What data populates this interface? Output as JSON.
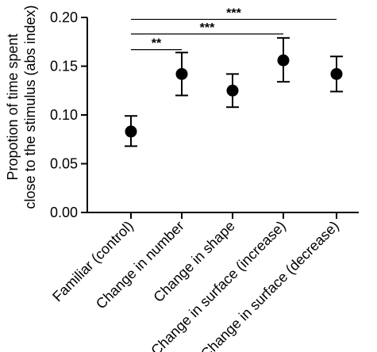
{
  "chart_data": {
    "type": "scatter",
    "title": "",
    "xlabel": "",
    "ylabel": "Propotion of time spent close to the stimulus (abs index)",
    "ylabel_lines": [
      "Propotion of time spent",
      "close to the stimulus (abs index)"
    ],
    "ylim": [
      0,
      0.2
    ],
    "y_ticks": [
      0.0,
      0.05,
      0.1,
      0.15,
      0.2
    ],
    "y_tick_labels": [
      "0.00",
      "0.05",
      "0.10",
      "0.15",
      "0.20"
    ],
    "grid": false,
    "legend": "none",
    "categories": [
      "Familiar (control)",
      "Change in number",
      "Change in shape",
      "Change in surface (increase)",
      "Change in surface (decrease)"
    ],
    "series": [
      {
        "values": [
          0.083,
          0.142,
          0.125,
          0.156,
          0.142
        ],
        "error_low": [
          0.068,
          0.12,
          0.108,
          0.134,
          0.124
        ],
        "error_high": [
          0.099,
          0.164,
          0.142,
          0.179,
          0.16
        ]
      }
    ],
    "significance": [
      {
        "from": 0,
        "to": 1,
        "label": "**",
        "y": 0.167
      },
      {
        "from": 0,
        "to": 3,
        "label": "***",
        "y": 0.183
      },
      {
        "from": 0,
        "to": 4,
        "label": "***",
        "y": 0.198
      }
    ]
  }
}
